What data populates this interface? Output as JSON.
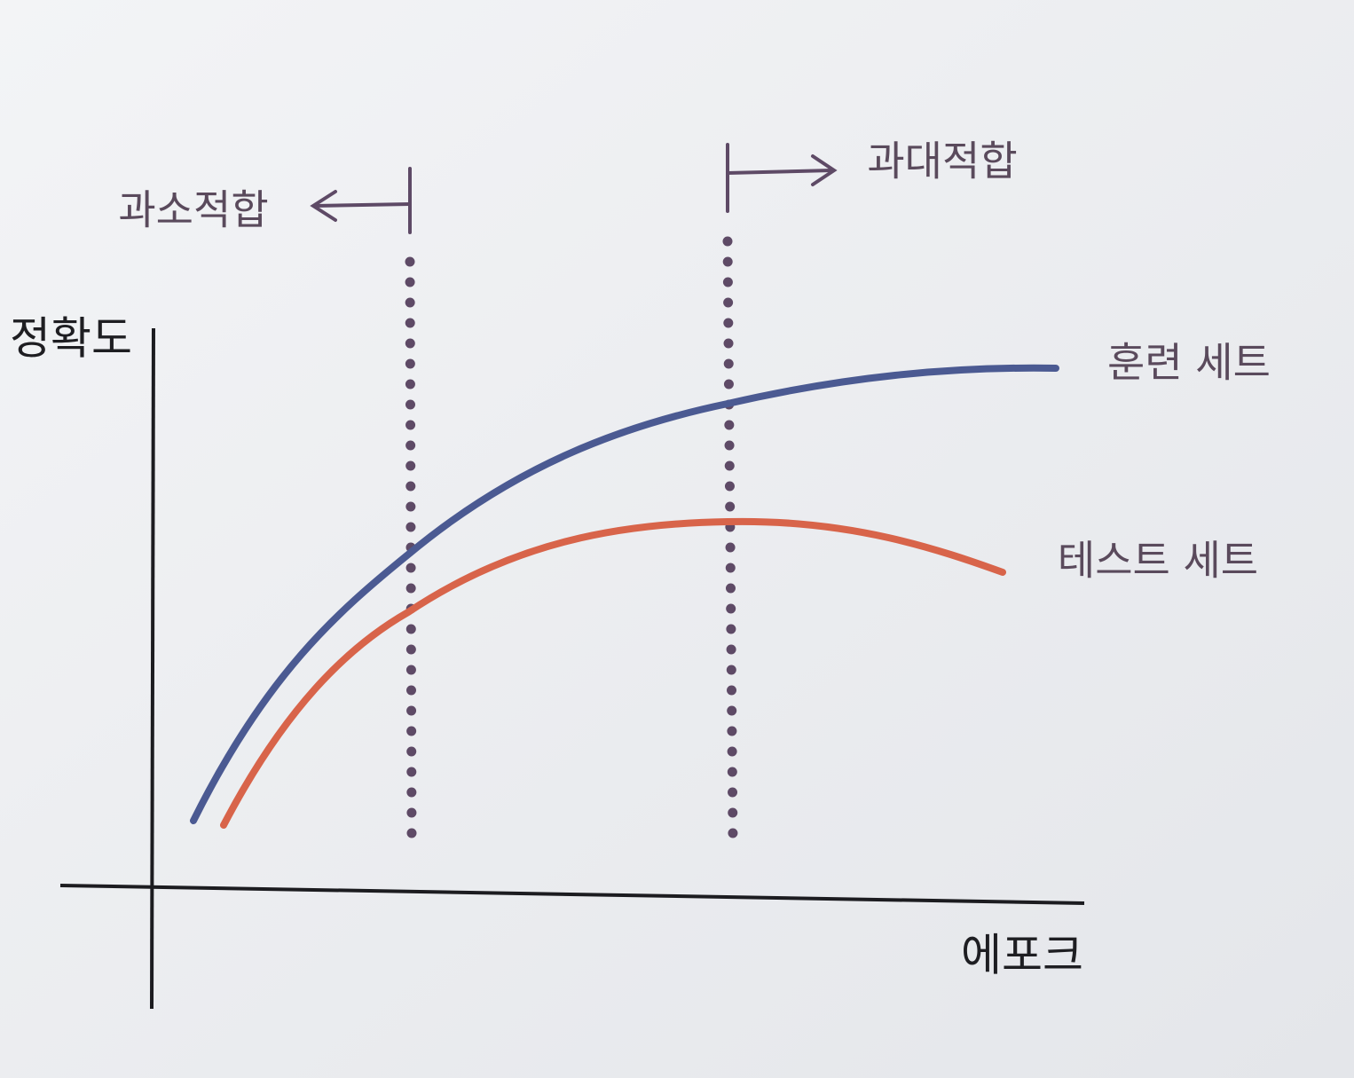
{
  "annotations": {
    "underfitting": "과소적합",
    "overfitting": "과대적합"
  },
  "axes": {
    "y_label": "정확도",
    "x_label": "에포크"
  },
  "curves": {
    "train": "훈련 세트",
    "test": "테스트 세트"
  }
}
